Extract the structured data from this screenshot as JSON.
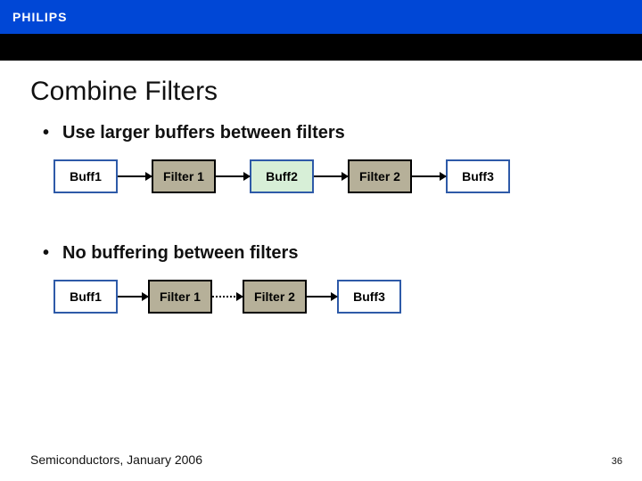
{
  "brand": "PHILIPS",
  "title": "Combine Filters",
  "bullet1": "Use larger buffers between filters",
  "bullet2": "No buffering between filters",
  "row1": {
    "nodes": [
      {
        "label": "Buff1",
        "type": "buff",
        "bg": "#ffffff"
      },
      {
        "label": "Filter 1",
        "type": "filt",
        "bg": "#b6b099"
      },
      {
        "label": "Buff2",
        "type": "buff",
        "bg": "#d7efd7"
      },
      {
        "label": "Filter 2",
        "type": "filt",
        "bg": "#b6b099"
      },
      {
        "label": "Buff3",
        "type": "buff",
        "bg": "#ffffff"
      }
    ],
    "arrow_width": 38,
    "arrow_style": "solid"
  },
  "row2": {
    "nodes": [
      {
        "label": "Buff1",
        "type": "buff",
        "bg": "#ffffff"
      },
      {
        "label": "Filter 1",
        "type": "filt",
        "bg": "#b6b099"
      },
      {
        "label": "Filter 2",
        "type": "filt",
        "bg": "#b6b099"
      },
      {
        "label": "Buff3",
        "type": "buff",
        "bg": "#ffffff"
      }
    ],
    "arrows": [
      "solid",
      "dotted",
      "solid"
    ],
    "arrow_width": 34
  },
  "footer": "Semiconductors, January 2006",
  "page": "36",
  "colors": {
    "topbar": "#0047d6",
    "blackbar": "#000000",
    "buff_border": "#2e5aa8",
    "filt_border": "#000000"
  }
}
